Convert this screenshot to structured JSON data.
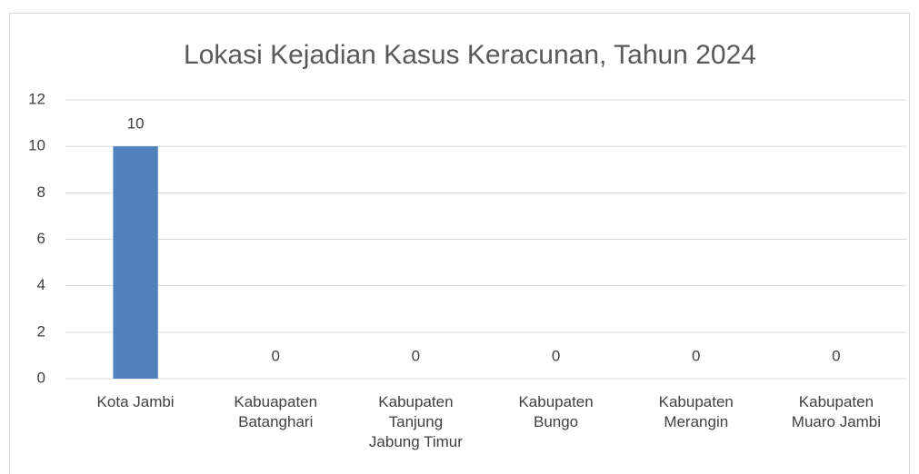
{
  "chart_data": {
    "type": "bar",
    "title": "Lokasi Kejadian Kasus Keracunan, Tahun 2024",
    "categories": [
      "Kota Jambi",
      "Kabuapaten Batanghari",
      "Kabupaten Tanjung Jabung Timur",
      "Kabupaten Bungo",
      "Kabupaten Merangin",
      "Kabupaten Muaro Jambi"
    ],
    "values": [
      10,
      0,
      0,
      0,
      0,
      0
    ],
    "color": "#4f81bd",
    "ylim": [
      0,
      12
    ],
    "yticks": [
      0,
      2,
      4,
      6,
      8,
      10,
      12
    ],
    "grid": true
  }
}
